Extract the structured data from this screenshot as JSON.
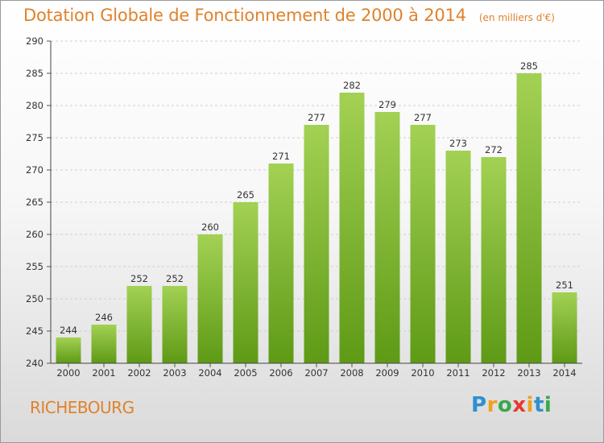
{
  "header": {
    "title": "Dotation Globale de Fonctionnement de 2000 à 2014",
    "unit": "(en milliers d'€)"
  },
  "footer": {
    "place": "RICHEBOURG",
    "logo_letters": [
      "P",
      "r",
      "o",
      "x",
      "i",
      "t",
      "i"
    ],
    "logo_colors": [
      "#2f8fd0",
      "#f0a020",
      "#3aa84b",
      "#e8392f",
      "#f0a020",
      "#2f8fd0",
      "#3aa84b"
    ]
  },
  "colors": {
    "bar_top": "#a3d154",
    "bar_bottom": "#5e9a16",
    "title": "#e0822c",
    "grid": "#cfcfcf"
  },
  "chart_data": {
    "type": "bar",
    "categories": [
      "2000",
      "2001",
      "2002",
      "2003",
      "2004",
      "2005",
      "2006",
      "2007",
      "2008",
      "2009",
      "2010",
      "2011",
      "2012",
      "2013",
      "2014"
    ],
    "values": [
      244,
      246,
      252,
      252,
      260,
      265,
      271,
      277,
      282,
      279,
      277,
      273,
      272,
      285,
      251
    ],
    "ylim": [
      240,
      290
    ],
    "yticks": [
      240,
      245,
      250,
      255,
      260,
      265,
      270,
      275,
      280,
      285,
      290
    ],
    "grid": true,
    "data_labels": true
  }
}
